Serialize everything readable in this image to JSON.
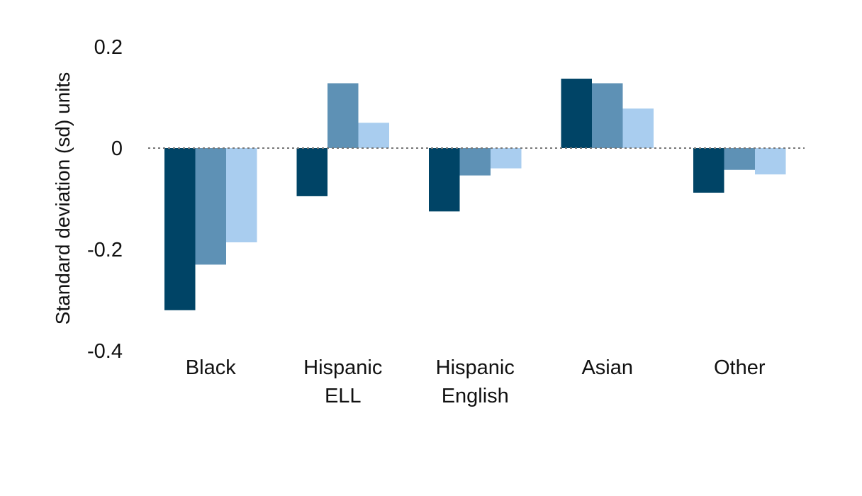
{
  "chart_data": {
    "type": "bar",
    "title": "",
    "xlabel": "",
    "ylabel": "Standard deviation (sd) units",
    "ylim": [
      -0.4,
      0.2
    ],
    "yticks": [
      {
        "value": 0.2,
        "label": "0.2"
      },
      {
        "value": 0,
        "label": "0"
      },
      {
        "value": -0.2,
        "label": "-0.2"
      },
      {
        "value": -0.4,
        "label": "-0.4"
      }
    ],
    "categories": [
      [
        "Black"
      ],
      [
        "Hispanic",
        "ELL"
      ],
      [
        "Hispanic",
        "English"
      ],
      [
        "Asian"
      ],
      [
        "Other"
      ]
    ],
    "series": [
      {
        "color": "#004466",
        "values": [
          -0.32,
          -0.095,
          -0.125,
          0.137,
          -0.088
        ]
      },
      {
        "color": "#5e91b5",
        "values": [
          -0.23,
          0.128,
          -0.054,
          0.128,
          -0.043
        ]
      },
      {
        "color": "#a9cdef",
        "values": [
          -0.186,
          0.05,
          -0.04,
          0.078,
          -0.052
        ]
      }
    ],
    "zero_line": {
      "style": "dotted",
      "color": "#777777"
    },
    "grid": false,
    "legend": "none"
  }
}
